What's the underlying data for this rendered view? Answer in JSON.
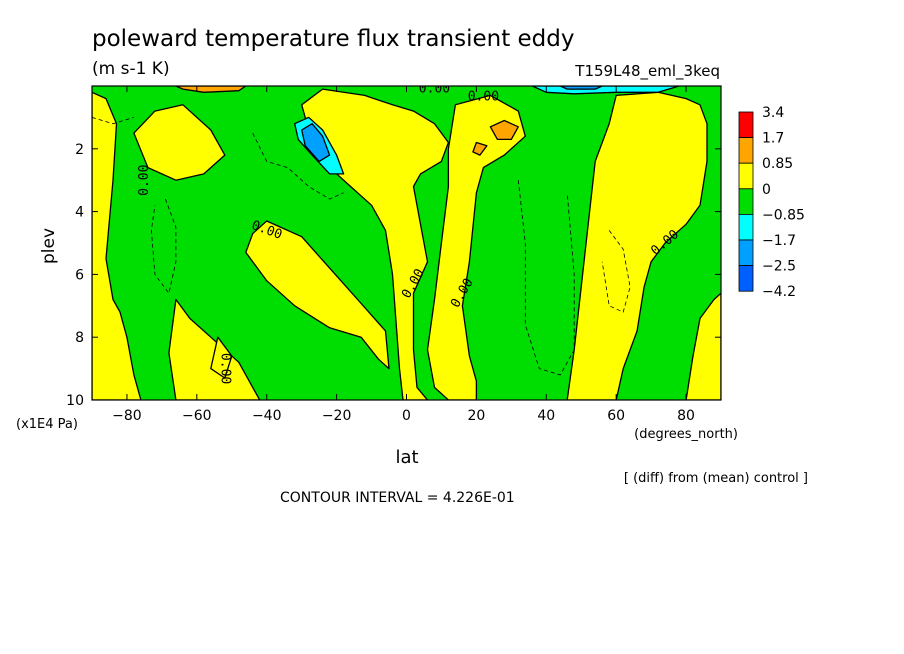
{
  "chart_data": {
    "type": "heatmap",
    "title": "poleward temperature flux transient eddy",
    "units": "(m s-1 K)",
    "run_label": "T159L48_eml_3keq",
    "xlabel": "lat",
    "x_units": "(degrees_north)",
    "ylabel": "plev",
    "y_units": "(x1E4 Pa)",
    "xlim": [
      -90,
      90
    ],
    "ylim": [
      10,
      0
    ],
    "x_ticks": [
      -80,
      -60,
      -40,
      -20,
      0,
      20,
      40,
      60,
      80
    ],
    "y_ticks": [
      2,
      4,
      6,
      8,
      10
    ],
    "colorbar": {
      "labels": [
        "3.4",
        "1.7",
        "0.85",
        "0",
        "−0.85",
        "−1.7",
        "−2.5",
        "−4.2"
      ],
      "colors": [
        "#ff0000",
        "#ffa500",
        "#ffff00",
        "#00dd00",
        "#00ffff",
        "#00a0ff",
        "#0060ff"
      ]
    },
    "background_fill": "#00dd00",
    "regions": [
      {
        "value": "0 to 0.85",
        "color": "#ffff00",
        "points": [
          [
            -90,
            0.2
          ],
          [
            -86,
            0.4
          ],
          [
            -83,
            1.2
          ],
          [
            -84,
            3.0
          ],
          [
            -86,
            5.5
          ],
          [
            -84,
            6.8
          ],
          [
            -82,
            7.2
          ],
          [
            -80,
            8.0
          ],
          [
            -78,
            9.2
          ],
          [
            -76,
            10
          ],
          [
            -90,
            10
          ]
        ]
      },
      {
        "value": "0 to 0.85",
        "color": "#ffff00",
        "points": [
          [
            -78,
            1.5
          ],
          [
            -72,
            0.8
          ],
          [
            -64,
            0.6
          ],
          [
            -56,
            1.4
          ],
          [
            -52,
            2.2
          ],
          [
            -58,
            2.8
          ],
          [
            -66,
            3.0
          ],
          [
            -74,
            2.6
          ]
        ]
      },
      {
        "value": "0 to 0.85",
        "color": "#ffff00",
        "points": [
          [
            -40,
            4.3
          ],
          [
            -30,
            4.8
          ],
          [
            -22,
            5.8
          ],
          [
            -14,
            6.8
          ],
          [
            -6,
            7.8
          ],
          [
            -5,
            9.0
          ],
          [
            -8,
            8.7
          ],
          [
            -13,
            8.0
          ],
          [
            -22,
            7.7
          ],
          [
            -32,
            7.0
          ],
          [
            -40,
            6.2
          ],
          [
            -46,
            5.3
          ],
          [
            -44,
            4.7
          ]
        ]
      },
      {
        "value": "0 to 0.85",
        "color": "#ffff00",
        "points": [
          [
            -66,
            6.8
          ],
          [
            -62,
            7.4
          ],
          [
            -56,
            8.0
          ],
          [
            -48,
            8.8
          ],
          [
            -44,
            9.6
          ],
          [
            -42,
            10
          ],
          [
            -66,
            10
          ],
          [
            -68,
            8.5
          ]
        ]
      },
      {
        "value": "0 to 0.85",
        "color": "#ffff00",
        "points": [
          [
            -54,
            8.0
          ],
          [
            -50,
            8.6
          ],
          [
            -52,
            9.3
          ],
          [
            -56,
            9.0
          ]
        ]
      },
      {
        "value": "0 to 0.85",
        "color": "#ffff00",
        "points": [
          [
            -24,
            0.1
          ],
          [
            -12,
            0.3
          ],
          [
            -4,
            0.6
          ],
          [
            2,
            0.8
          ],
          [
            8,
            1.2
          ],
          [
            12,
            1.8
          ],
          [
            10,
            2.4
          ],
          [
            4,
            2.8
          ],
          [
            2,
            3.2
          ],
          [
            4,
            4.4
          ],
          [
            6,
            5.6
          ],
          [
            2,
            6.6
          ],
          [
            2,
            8.4
          ],
          [
            3,
            9.6
          ],
          [
            6,
            10
          ],
          [
            -1,
            10
          ],
          [
            -2,
            9.0
          ],
          [
            -4,
            6.0
          ],
          [
            -6,
            4.6
          ],
          [
            -10,
            3.8
          ],
          [
            -16,
            3.2
          ],
          [
            -20,
            2.8
          ],
          [
            -24,
            2.2
          ],
          [
            -28,
            1.4
          ],
          [
            -30,
            0.6
          ]
        ]
      },
      {
        "value": "0 to 0.85",
        "color": "#ffff00",
        "points": [
          [
            14,
            0.6
          ],
          [
            24,
            0.3
          ],
          [
            32,
            0.8
          ],
          [
            34,
            1.6
          ],
          [
            28,
            2.2
          ],
          [
            22,
            2.6
          ],
          [
            20,
            3.4
          ],
          [
            18,
            5.6
          ],
          [
            16,
            7.0
          ],
          [
            18,
            8.6
          ],
          [
            20,
            9.4
          ],
          [
            20,
            10
          ],
          [
            12,
            10
          ],
          [
            8,
            9.6
          ],
          [
            6,
            8.4
          ],
          [
            8,
            6.8
          ],
          [
            10,
            5.0
          ],
          [
            12,
            3.2
          ],
          [
            12,
            2.0
          ]
        ]
      },
      {
        "value": "0 to 0.85",
        "color": "#ffff00",
        "points": [
          [
            60,
            0.3
          ],
          [
            72,
            0.2
          ],
          [
            80,
            0.4
          ],
          [
            84,
            0.6
          ],
          [
            86,
            1.2
          ],
          [
            86,
            2.4
          ],
          [
            84,
            3.8
          ],
          [
            80,
            4.4
          ],
          [
            74,
            5.0
          ],
          [
            70,
            5.6
          ],
          [
            68,
            6.4
          ],
          [
            66,
            7.8
          ],
          [
            62,
            9.0
          ],
          [
            60,
            10
          ],
          [
            46,
            10
          ],
          [
            48,
            8.4
          ],
          [
            50,
            6.4
          ],
          [
            52,
            4.4
          ],
          [
            54,
            2.4
          ],
          [
            58,
            1.2
          ]
        ]
      },
      {
        "value": "0 to 0.85",
        "color": "#ffff00",
        "points": [
          [
            84,
            7.4
          ],
          [
            88,
            6.8
          ],
          [
            90,
            6.6
          ],
          [
            90,
            10
          ],
          [
            80,
            10
          ],
          [
            82,
            8.6
          ]
        ]
      },
      {
        "value": "0.85 to 1.7",
        "color": "#ffa500",
        "points": [
          [
            24,
            1.3
          ],
          [
            28,
            1.1
          ],
          [
            32,
            1.3
          ],
          [
            30,
            1.7
          ],
          [
            26,
            1.7
          ]
        ]
      },
      {
        "value": "0.85 to 1.7",
        "color": "#ffa500",
        "points": [
          [
            -66,
            0.0
          ],
          [
            -56,
            0.0
          ],
          [
            -46,
            0.0
          ],
          [
            -48,
            0.15
          ],
          [
            -58,
            0.2
          ],
          [
            -64,
            0.1
          ]
        ]
      },
      {
        "value": "0.85 to 1.7",
        "color": "#ffa500",
        "points": [
          [
            20,
            1.8
          ],
          [
            23,
            1.9
          ],
          [
            21,
            2.2
          ],
          [
            19,
            2.1
          ]
        ]
      },
      {
        "value": "-0.85 to -1.7",
        "color": "#00ffff",
        "points": [
          [
            -32,
            1.2
          ],
          [
            -28,
            1.0
          ],
          [
            -24,
            1.4
          ],
          [
            -20,
            2.2
          ],
          [
            -18,
            2.8
          ],
          [
            -22,
            2.8
          ],
          [
            -27,
            2.2
          ],
          [
            -31,
            1.7
          ]
        ]
      },
      {
        "value": "-1.7 to -2.5",
        "color": "#00a0ff",
        "points": [
          [
            -30,
            1.4
          ],
          [
            -27,
            1.2
          ],
          [
            -24,
            1.6
          ],
          [
            -22,
            2.2
          ],
          [
            -25,
            2.4
          ],
          [
            -29,
            1.9
          ]
        ]
      },
      {
        "value": "-0.85 to -1.7",
        "color": "#00ffff",
        "points": [
          [
            36,
            0.0
          ],
          [
            60,
            0.0
          ],
          [
            78,
            0.0
          ],
          [
            72,
            0.2
          ],
          [
            60,
            0.2
          ],
          [
            48,
            0.25
          ],
          [
            40,
            0.2
          ]
        ]
      },
      {
        "value": "-1.7 to -2.5",
        "color": "#00a0ff",
        "points": [
          [
            44,
            0.0
          ],
          [
            56,
            0.0
          ],
          [
            54,
            0.1
          ],
          [
            46,
            0.1
          ]
        ]
      }
    ],
    "contour_labels": [
      {
        "text": "0.00",
        "x": -75,
        "y": 3.0,
        "angle": -90
      },
      {
        "text": "0.00",
        "x": -40,
        "y": 4.6,
        "angle": 20
      },
      {
        "text": "0.00",
        "x": 2,
        "y": 6.3,
        "angle": -60
      },
      {
        "text": "0.00",
        "x": 16,
        "y": 6.6,
        "angle": -60
      },
      {
        "text": "0.00",
        "x": -52,
        "y": 9.0,
        "angle": 90
      },
      {
        "text": "0.00",
        "x": 8,
        "y": 0.1,
        "angle": 0
      },
      {
        "text": "0.00",
        "x": 22,
        "y": 0.35,
        "angle": 0
      },
      {
        "text": "0.00",
        "x": 74,
        "y": 5.0,
        "angle": -40
      }
    ],
    "dashed_contours": [
      [
        [
          -69,
          3.6
        ],
        [
          -66,
          4.5
        ],
        [
          -66,
          5.6
        ],
        [
          -68,
          6.6
        ],
        [
          -72,
          6.0
        ],
        [
          -73,
          4.6
        ],
        [
          -72,
          3.8
        ]
      ],
      [
        [
          -44,
          1.5
        ],
        [
          -40,
          2.4
        ],
        [
          -34,
          2.6
        ],
        [
          -28,
          3.2
        ],
        [
          -22,
          3.6
        ],
        [
          -18,
          3.4
        ]
      ],
      [
        [
          32,
          3.0
        ],
        [
          34,
          5.0
        ],
        [
          34,
          7.6
        ],
        [
          38,
          9.0
        ],
        [
          44,
          9.2
        ],
        [
          48,
          8.4
        ],
        [
          48,
          6.0
        ],
        [
          46,
          3.4
        ]
      ],
      [
        [
          58,
          4.6
        ],
        [
          62,
          5.2
        ],
        [
          64,
          6.4
        ],
        [
          62,
          7.2
        ],
        [
          58,
          7.0
        ],
        [
          56,
          5.6
        ]
      ],
      [
        [
          -90,
          1.0
        ],
        [
          -84,
          1.2
        ],
        [
          -78,
          1.0
        ]
      ]
    ]
  },
  "footer": {
    "diff_note": "[ (diff) from (mean) control ]",
    "contour_interval": "CONTOUR INTERVAL = 4.226E-01"
  }
}
